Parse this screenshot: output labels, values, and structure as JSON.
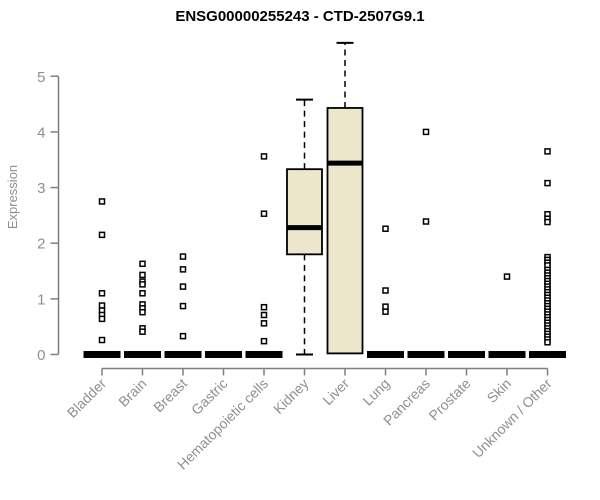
{
  "title": "ENSG00000255243 - CTD-2507G9.1",
  "colors": {
    "box_fill": "#ECE7CC",
    "box_stroke": "#000000",
    "axis": "#7f7f7f",
    "tick_label": "#8f8f8f",
    "title": "#000000",
    "outlier_fill": "#ffffff",
    "background": "#ffffff"
  },
  "chart_data": {
    "type": "boxplot",
    "title": "ENSG00000255243 - CTD-2507G9.1",
    "xlabel": "",
    "ylabel": "Expression",
    "ylim": [
      0,
      5.6
    ],
    "yticks": [
      0,
      1,
      2,
      3,
      4,
      5
    ],
    "grid": false,
    "legend": "none",
    "categories": [
      "Bladder",
      "Brain",
      "Breast",
      "Gastric",
      "Hematopoietic cells",
      "Kidney",
      "Liver",
      "Lung",
      "Pancreas",
      "Prostate",
      "Skin",
      "Unknown / Other"
    ],
    "boxes": [
      {
        "category": "Bladder",
        "whisker_low": 0,
        "q1": 0,
        "median": 0,
        "q3": 0,
        "whisker_high": 0,
        "outliers": [
          2.75,
          2.15,
          1.1,
          0.88,
          0.79,
          0.71,
          0.64,
          0.26
        ]
      },
      {
        "category": "Brain",
        "whisker_low": 0,
        "q1": 0,
        "median": 0,
        "q3": 0,
        "whisker_high": 0,
        "outliers": [
          1.63,
          1.43,
          1.31,
          1.26,
          1.1,
          0.9,
          0.83,
          0.76,
          0.47,
          0.41
        ]
      },
      {
        "category": "Breast",
        "whisker_low": 0,
        "q1": 0,
        "median": 0,
        "q3": 0,
        "whisker_high": 0,
        "outliers": [
          1.76,
          1.53,
          1.22,
          0.87,
          0.33
        ]
      },
      {
        "category": "Gastric",
        "whisker_low": 0,
        "q1": 0,
        "median": 0,
        "q3": 0,
        "whisker_high": 0,
        "outliers": []
      },
      {
        "category": "Hematopoietic cells",
        "whisker_low": 0,
        "q1": 0,
        "median": 0,
        "q3": 0,
        "whisker_high": 0,
        "outliers": [
          3.56,
          2.53,
          0.85,
          0.71,
          0.56,
          0.24
        ]
      },
      {
        "category": "Kidney",
        "whisker_low": 0,
        "q1": 1.8,
        "median": 2.28,
        "q3": 3.33,
        "whisker_high": 4.58,
        "outliers": []
      },
      {
        "category": "Liver",
        "whisker_low": 0.02,
        "q1": 0.02,
        "median": 3.44,
        "q3": 4.43,
        "whisker_high": 5.6,
        "outliers": []
      },
      {
        "category": "Lung",
        "whisker_low": 0,
        "q1": 0,
        "median": 0,
        "q3": 0,
        "whisker_high": 0,
        "outliers": [
          2.26,
          1.15,
          0.86,
          0.77
        ]
      },
      {
        "category": "Pancreas",
        "whisker_low": 0,
        "q1": 0,
        "median": 0,
        "q3": 0,
        "whisker_high": 0,
        "outliers": [
          4.0,
          2.39
        ]
      },
      {
        "category": "Prostate",
        "whisker_low": 0,
        "q1": 0,
        "median": 0,
        "q3": 0,
        "whisker_high": 0,
        "outliers": []
      },
      {
        "category": "Skin",
        "whisker_low": 0,
        "q1": 0,
        "median": 0,
        "q3": 0,
        "whisker_high": 0,
        "outliers": [
          1.4
        ]
      },
      {
        "category": "Unknown / Other",
        "whisker_low": 0,
        "q1": 0,
        "median": 0,
        "q3": 0,
        "whisker_high": 0,
        "outliers": [
          3.65,
          3.08,
          2.52,
          2.44,
          2.38,
          1.75,
          1.7,
          1.65,
          1.6,
          1.52,
          1.47,
          1.42,
          1.37,
          1.32,
          1.27,
          1.22,
          1.17,
          1.12,
          1.07,
          1.02,
          0.97,
          0.92,
          0.87,
          0.82,
          0.77,
          0.72,
          0.67,
          0.62,
          0.57,
          0.52,
          0.47,
          0.42,
          0.37,
          0.32,
          0.27,
          0.22
        ]
      }
    ]
  }
}
